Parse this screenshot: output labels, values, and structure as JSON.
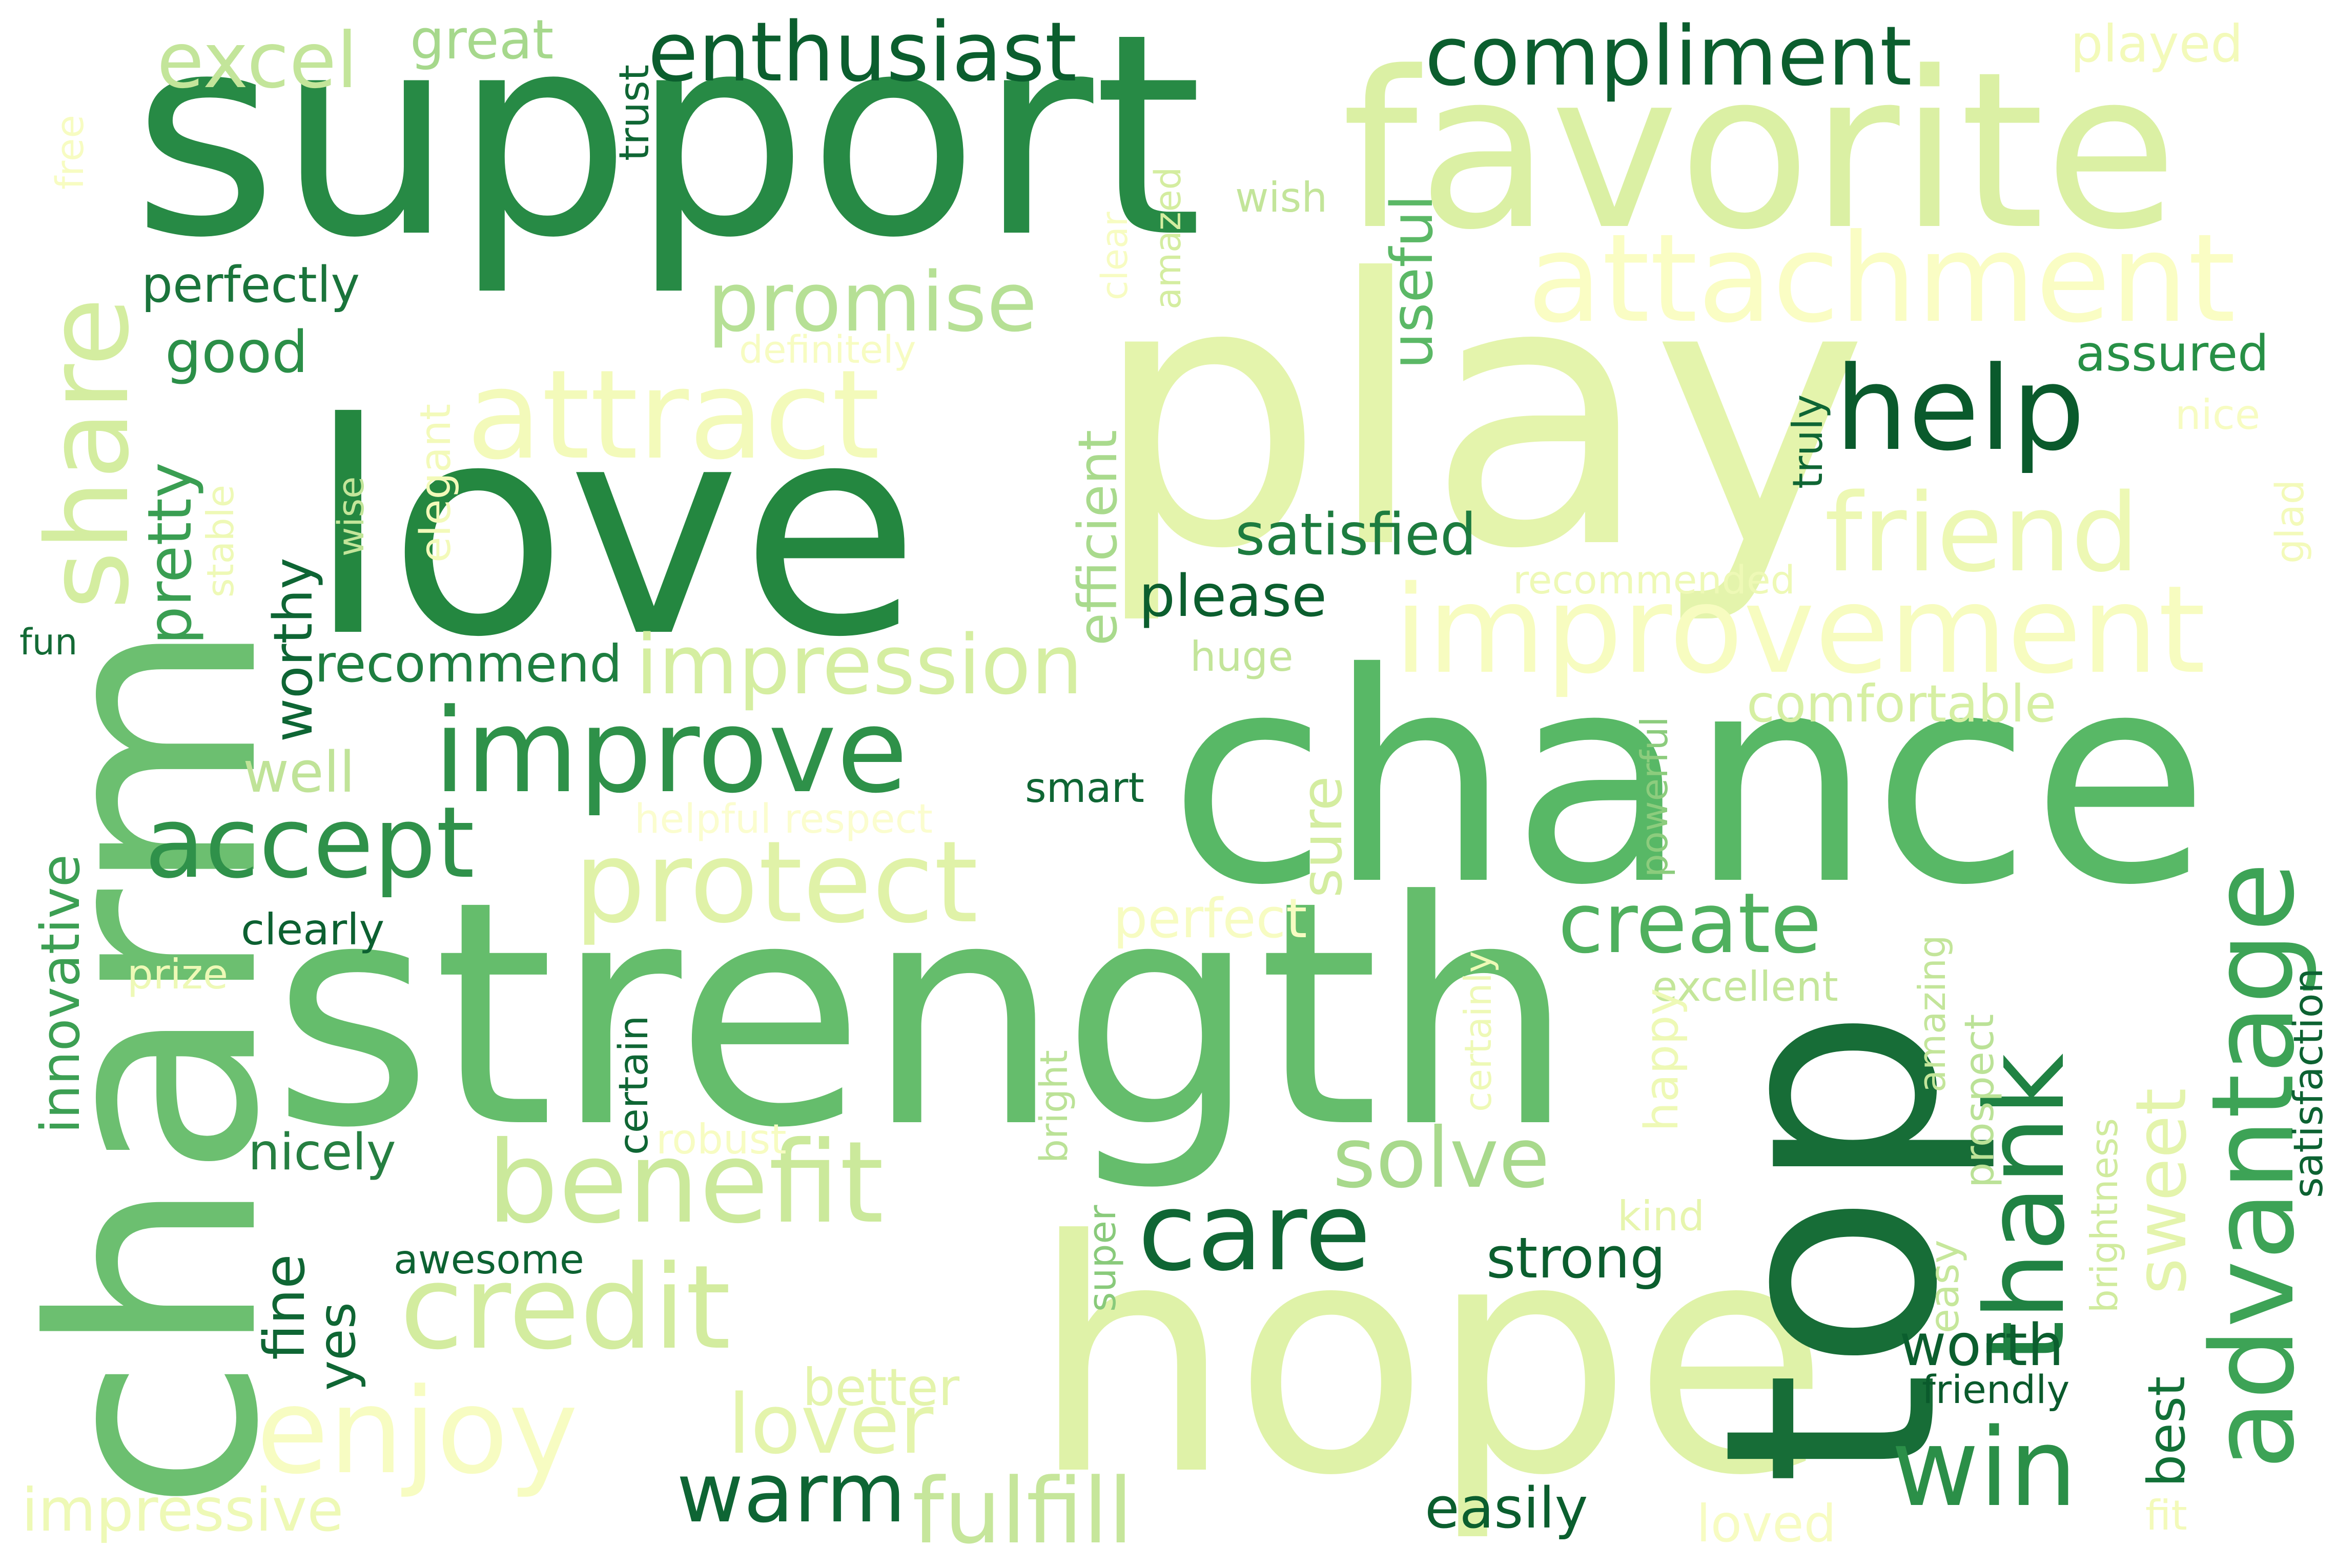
{
  "words": [
    {
      "text": "support",
      "color": "#278a45"
    },
    {
      "text": "favorite",
      "color": "#dbf0a4"
    },
    {
      "text": "play",
      "color": "#e4f4ac"
    },
    {
      "text": "love",
      "color": "#248740"
    },
    {
      "text": "chance",
      "color": "#58b866"
    },
    {
      "text": "strength",
      "color": "#65bd6c"
    },
    {
      "text": "charm",
      "color": "#6cbf70"
    },
    {
      "text": "hope",
      "color": "#dff2a8"
    },
    {
      "text": "top",
      "color": "#176d37"
    },
    {
      "text": "attachment",
      "color": "#fafdc4"
    },
    {
      "text": "attract",
      "color": "#f3faba"
    },
    {
      "text": "improvement",
      "color": "#f7fcc0"
    },
    {
      "text": "share",
      "color": "#d4eda0"
    },
    {
      "text": "help",
      "color": "#0a5a2c"
    },
    {
      "text": "friend",
      "color": "#edf8b4"
    },
    {
      "text": "improve",
      "color": "#2e9149"
    },
    {
      "text": "benefit",
      "color": "#cbe99b"
    },
    {
      "text": "credit",
      "color": "#d3ec9f"
    },
    {
      "text": "enjoy",
      "color": "#f7fcc2"
    },
    {
      "text": "protect",
      "color": "#e0f2a8"
    },
    {
      "text": "advantage",
      "color": "#3da356"
    },
    {
      "text": "thank",
      "color": "#208243"
    },
    {
      "text": "care",
      "color": "#0f6634"
    },
    {
      "text": "win",
      "color": "#2b8f48"
    },
    {
      "text": "accept",
      "color": "#2f914a"
    },
    {
      "text": "impression",
      "color": "#d5eea1"
    },
    {
      "text": "promise",
      "color": "#b6e095"
    },
    {
      "text": "enthusiast",
      "color": "#0b5e2e"
    },
    {
      "text": "compliment",
      "color": "#0b5e2e"
    },
    {
      "text": "excel",
      "color": "#c3e59a"
    },
    {
      "text": "great",
      "color": "#a6d88c"
    },
    {
      "text": "create",
      "color": "#4fb05e"
    },
    {
      "text": "solve",
      "color": "#a8d98c"
    },
    {
      "text": "warm",
      "color": "#0e6534"
    },
    {
      "text": "fulfill",
      "color": "#c6e69b"
    },
    {
      "text": "lover",
      "color": "#e4f4ac"
    },
    {
      "text": "sweet",
      "color": "#e4f4ac"
    },
    {
      "text": "useful",
      "color": "#5bb866"
    },
    {
      "text": "satisfied",
      "color": "#1d7c3f"
    },
    {
      "text": "please",
      "color": "#0b5e2e"
    },
    {
      "text": "recommend",
      "color": "#1e7e40"
    },
    {
      "text": "perfectly",
      "color": "#1a743b"
    },
    {
      "text": "good",
      "color": "#2b8f48"
    },
    {
      "text": "pretty",
      "color": "#3a9e52"
    },
    {
      "text": "worthy",
      "color": "#0e6534"
    },
    {
      "text": "well",
      "color": "#c0e398"
    },
    {
      "text": "innovative",
      "color": "#3c9f53"
    },
    {
      "text": "clearly",
      "color": "#0c6031"
    },
    {
      "text": "nicely",
      "color": "#267f41"
    },
    {
      "text": "fine",
      "color": "#0f6634"
    },
    {
      "text": "yes",
      "color": "#0f6634"
    },
    {
      "text": "awesome",
      "color": "#0d6232"
    },
    {
      "text": "strong",
      "color": "#0b5e2e"
    },
    {
      "text": "worth",
      "color": "#0b5e2e"
    },
    {
      "text": "friendly",
      "color": "#0a5a2c"
    },
    {
      "text": "easily",
      "color": "#0b5e2e"
    },
    {
      "text": "best",
      "color": "#127037"
    },
    {
      "text": "satisfaction",
      "color": "#0d6232"
    },
    {
      "text": "assured",
      "color": "#279046"
    },
    {
      "text": "truly",
      "color": "#0f6634"
    },
    {
      "text": "efficient",
      "color": "#a9da8d"
    },
    {
      "text": "comfortable",
      "color": "#d6efa3"
    },
    {
      "text": "sure",
      "color": "#d4eda0"
    },
    {
      "text": "smart",
      "color": "#0f6634"
    },
    {
      "text": "powerful",
      "color": "#8ccc7d"
    },
    {
      "text": "excellent",
      "color": "#c4e69a"
    },
    {
      "text": "happy",
      "color": "#eef9b6"
    },
    {
      "text": "easy",
      "color": "#c6e79b"
    },
    {
      "text": "prospect",
      "color": "#bbe297"
    },
    {
      "text": "amazing",
      "color": "#c3e59a"
    },
    {
      "text": "brightness",
      "color": "#d0eb9e"
    },
    {
      "text": "certainly",
      "color": "#eef9b6"
    },
    {
      "text": "certain",
      "color": "#0f6634"
    },
    {
      "text": "bright",
      "color": "#bbe297"
    },
    {
      "text": "super",
      "color": "#89ca7b"
    },
    {
      "text": "kind",
      "color": "#e7f5ae"
    },
    {
      "text": "better",
      "color": "#e4f4ac"
    },
    {
      "text": "loved",
      "color": "#f7fcc2"
    },
    {
      "text": "fit",
      "color": "#f3faba"
    },
    {
      "text": "impressive",
      "color": "#eef9b6"
    },
    {
      "text": "prize",
      "color": "#eef9b6"
    },
    {
      "text": "robust",
      "color": "#f7fcc2"
    },
    {
      "text": "perfect",
      "color": "#f7fcc2"
    },
    {
      "text": "helpful respect",
      "color": "#fbfdcf"
    },
    {
      "text": "huge",
      "color": "#c3e59a"
    },
    {
      "text": "recommended",
      "color": "#eef9b6"
    },
    {
      "text": "fun",
      "color": "#136a35"
    },
    {
      "text": "stable",
      "color": "#eef9b6"
    },
    {
      "text": "wise",
      "color": "#c3e59a"
    },
    {
      "text": "elegant",
      "color": "#f3faba"
    },
    {
      "text": "definitely",
      "color": "#f7fcc2"
    },
    {
      "text": "free",
      "color": "#f7fcc2"
    },
    {
      "text": "trust",
      "color": "#0f6634"
    },
    {
      "text": "wish",
      "color": "#c3e59a"
    },
    {
      "text": "clear",
      "color": "#f7fcc2"
    },
    {
      "text": "amazed",
      "color": "#d4eda0"
    },
    {
      "text": "played",
      "color": "#f3faba"
    },
    {
      "text": "nice",
      "color": "#f7fcc2"
    },
    {
      "text": "glad",
      "color": "#f3faba"
    }
  ]
}
